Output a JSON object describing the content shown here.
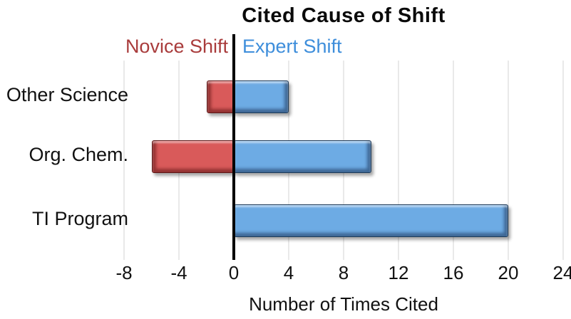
{
  "chart_data": {
    "type": "bar",
    "orientation": "horizontal",
    "title": "Cited Cause of Shift",
    "xlabel": "Number of Times Cited",
    "categories": [
      "Other Science",
      "Org. Chem.",
      "TI Program"
    ],
    "series": [
      {
        "name": "Novice Shift",
        "bar_color": "#d95a5a",
        "label_color": "#a93c3c",
        "values": [
          -2,
          -6,
          0
        ]
      },
      {
        "name": "Expert Shift",
        "bar_color": "#6dabe4",
        "label_color": "#3e8edb",
        "values": [
          4,
          10,
          20
        ]
      }
    ],
    "xlim": [
      -8,
      24
    ],
    "xticks": [
      -8,
      -4,
      0,
      4,
      8,
      12,
      16,
      20,
      24
    ],
    "grid": "vertical-light-gray",
    "gridline_color": "#e9e9e9",
    "zero_axis_color": "#000000",
    "legend_position": "top-of-plot-split-at-zero",
    "background_color": "#ffffff"
  }
}
